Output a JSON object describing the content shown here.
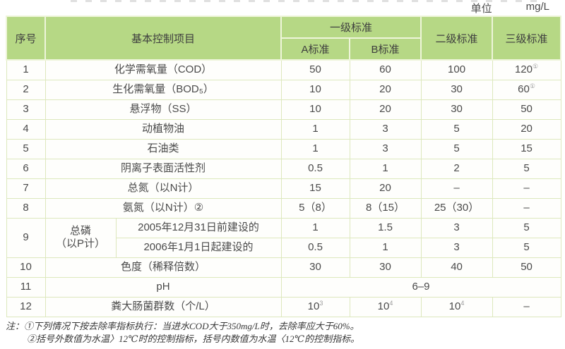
{
  "page": {
    "unit_label": "单位",
    "unit_value": "mg/L"
  },
  "table": {
    "header": {
      "col_index": "序号",
      "col_item": "基本控制项目",
      "col_level1": "一级标准",
      "col_level1_a": "A标准",
      "col_level1_b": "B标准",
      "col_level2": "二级标准",
      "col_level3": "三级标准"
    },
    "rows": [
      {
        "no": "1",
        "item": "化学需氧量（COD）",
        "a": "50",
        "b": "60",
        "c": "100",
        "d": "120^①"
      },
      {
        "no": "2",
        "item": "生化需氧量（BOD₅）",
        "a": "10",
        "b": "20",
        "c": "30",
        "d": "60^①"
      },
      {
        "no": "3",
        "item": "悬浮物（SS）",
        "a": "10",
        "b": "20",
        "c": "30",
        "d": "50"
      },
      {
        "no": "4",
        "item": "动植物油",
        "a": "1",
        "b": "3",
        "c": "5",
        "d": "20"
      },
      {
        "no": "5",
        "item": "石油类",
        "a": "1",
        "b": "3",
        "c": "5",
        "d": "15"
      },
      {
        "no": "6",
        "item": "阴离子表面活性剂",
        "a": "0.5",
        "b": "1",
        "c": "2",
        "d": "5"
      },
      {
        "no": "7",
        "item": "总氮（以N计）",
        "a": "15",
        "b": "20",
        "c": "–",
        "d": "–"
      },
      {
        "no": "8",
        "item": "氨氮（以N计）②",
        "a": "5（8）",
        "b": "8（15）",
        "c": "25（30）",
        "d": "–"
      }
    ],
    "row9": {
      "no": "9",
      "item": "总磷\n（以P计）",
      "sub_rows": [
        {
          "label": "2005年12月31日前建设的",
          "a": "1",
          "b": "1.5",
          "c": "3",
          "d": "5"
        },
        {
          "label": "2006年1月1日起建设的",
          "a": "0.5",
          "b": "1",
          "c": "3",
          "d": "5"
        }
      ]
    },
    "row10": {
      "no": "10",
      "item": "色度（稀释倍数）",
      "a": "30",
      "b": "30",
      "c": "40",
      "d": "50"
    },
    "row11": {
      "no": "11",
      "item": "pH",
      "value": "6–9"
    },
    "row12": {
      "no": "12",
      "item": "粪大肠菌群数（个/L）",
      "a": "10^3",
      "b": "10^4",
      "c": "10^4",
      "d": "–"
    }
  },
  "notes": {
    "prefix": "注：",
    "line1": "①下列情况下按去除率指标执行：当进水COD大于350mg/L时，去除率应大于60%。",
    "line2": "②括号外数值为水温〉12℃时的控制指标，括号内数值为水温〈12℃的控制指标。"
  },
  "colors": {
    "header_bg": "#b6d885",
    "header_divider": "#eef5da",
    "body_border": "#dde8bd"
  }
}
